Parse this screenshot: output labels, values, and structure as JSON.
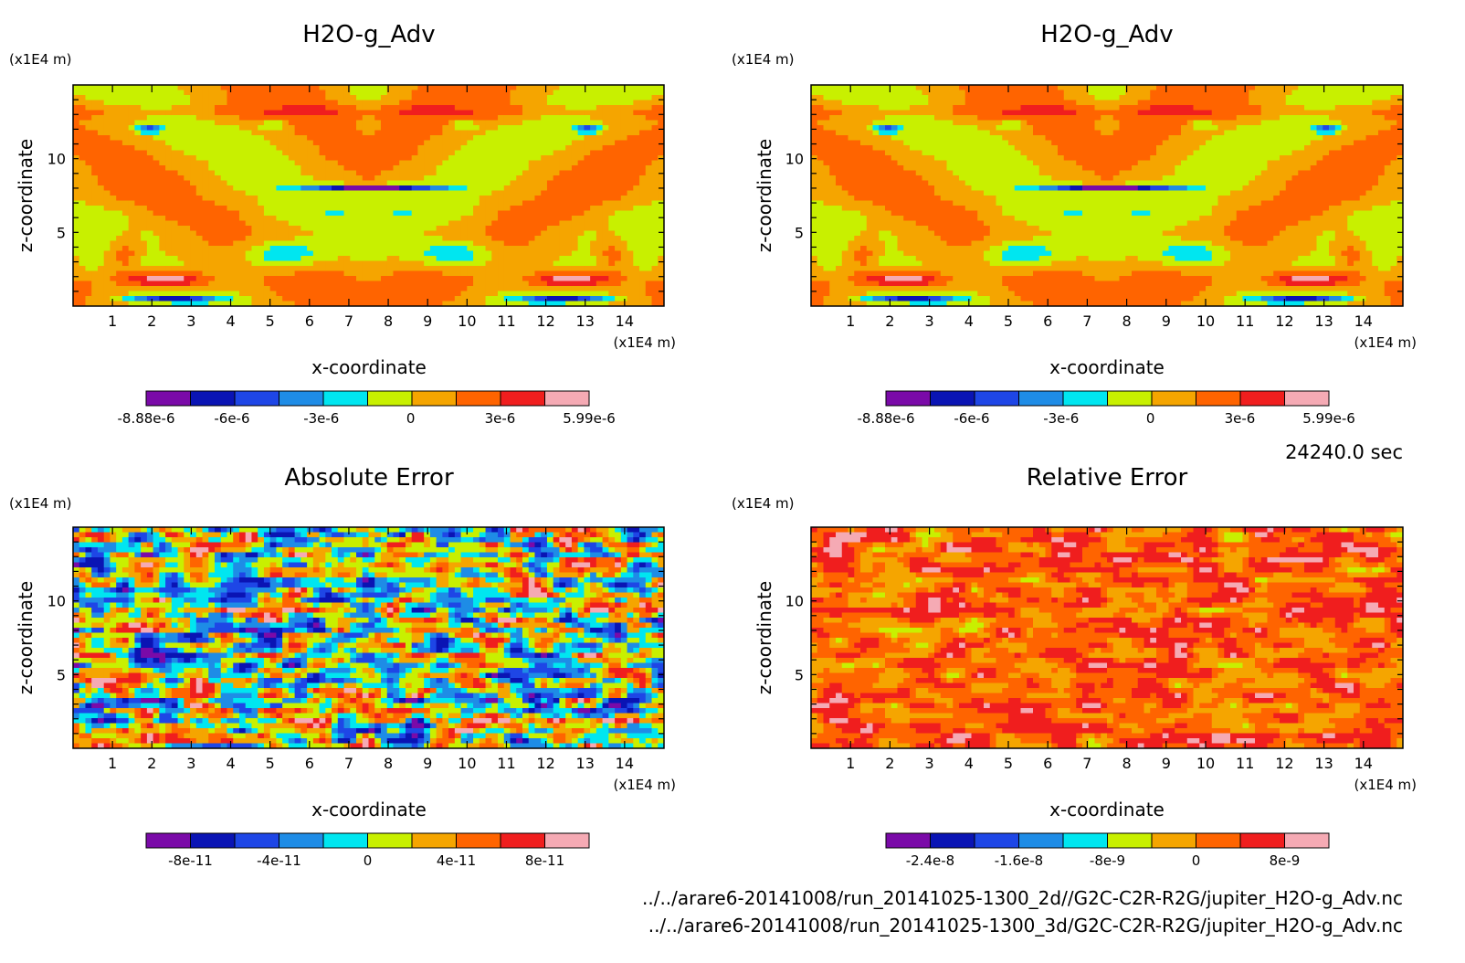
{
  "chart_data": [
    {
      "type": "heatmap",
      "title": "H2O-g_Adv",
      "xlabel": "x-coordinate",
      "ylabel": "z-coordinate",
      "x_unit": "(x1E4 m)",
      "y_unit": "(x1E4 m)",
      "xlim": [
        0,
        15
      ],
      "ylim": [
        0,
        15
      ],
      "x_ticks": [
        "1",
        "2",
        "3",
        "4",
        "5",
        "6",
        "7",
        "8",
        "9",
        "10",
        "11",
        "12",
        "13",
        "14"
      ],
      "y_ticks": [
        "5",
        "10"
      ],
      "colorbar": {
        "colors": [
          "#7a0aa8",
          "#0a14b4",
          "#1e46e6",
          "#1e8ce6",
          "#00e6f0",
          "#c8f000",
          "#f5a500",
          "#ff6400",
          "#f01e1e",
          "#f5aab4"
        ],
        "labels": [
          "-8.88e-6",
          "-6e-6",
          "-3e-6",
          "0",
          "3e-6",
          "5.99e-6"
        ],
        "min": -8.88e-06,
        "max": 5.99e-06
      },
      "field": "h2o"
    },
    {
      "type": "heatmap",
      "title": "H2O-g_Adv",
      "xlabel": "x-coordinate",
      "ylabel": "z-coordinate",
      "x_unit": "(x1E4 m)",
      "y_unit": "(x1E4 m)",
      "xlim": [
        0,
        15
      ],
      "ylim": [
        0,
        15
      ],
      "x_ticks": [
        "1",
        "2",
        "3",
        "4",
        "5",
        "6",
        "7",
        "8",
        "9",
        "10",
        "11",
        "12",
        "13",
        "14"
      ],
      "y_ticks": [
        "5",
        "10"
      ],
      "colorbar": {
        "colors": [
          "#7a0aa8",
          "#0a14b4",
          "#1e46e6",
          "#1e8ce6",
          "#00e6f0",
          "#c8f000",
          "#f5a500",
          "#ff6400",
          "#f01e1e",
          "#f5aab4"
        ],
        "labels": [
          "-8.88e-6",
          "-6e-6",
          "-3e-6",
          "0",
          "3e-6",
          "5.99e-6"
        ],
        "min": -8.88e-06,
        "max": 5.99e-06
      },
      "field": "h2o"
    },
    {
      "type": "heatmap",
      "title": "Absolute Error",
      "xlabel": "x-coordinate",
      "ylabel": "z-coordinate",
      "x_unit": "(x1E4 m)",
      "y_unit": "(x1E4 m)",
      "xlim": [
        0,
        15
      ],
      "ylim": [
        0,
        15
      ],
      "x_ticks": [
        "1",
        "2",
        "3",
        "4",
        "5",
        "6",
        "7",
        "8",
        "9",
        "10",
        "11",
        "12",
        "13",
        "14"
      ],
      "y_ticks": [
        "5",
        "10"
      ],
      "colorbar": {
        "colors": [
          "#7a0aa8",
          "#0a14b4",
          "#1e46e6",
          "#1e8ce6",
          "#00e6f0",
          "#c8f000",
          "#f5a500",
          "#ff6400",
          "#f01e1e",
          "#f5aab4"
        ],
        "labels": [
          "-8e-11",
          "-4e-11",
          "0",
          "4e-11",
          "8e-11"
        ],
        "min": -1e-10,
        "max": 1e-10
      },
      "field": "abs"
    },
    {
      "type": "heatmap",
      "title": "Relative Error",
      "xlabel": "x-coordinate",
      "ylabel": "z-coordinate",
      "x_unit": "(x1E4 m)",
      "y_unit": "(x1E4 m)",
      "xlim": [
        0,
        15
      ],
      "ylim": [
        0,
        15
      ],
      "x_ticks": [
        "1",
        "2",
        "3",
        "4",
        "5",
        "6",
        "7",
        "8",
        "9",
        "10",
        "11",
        "12",
        "13",
        "14"
      ],
      "y_ticks": [
        "5",
        "10"
      ],
      "colorbar": {
        "colors": [
          "#7a0aa8",
          "#0a14b4",
          "#1e46e6",
          "#1e8ce6",
          "#00e6f0",
          "#c8f000",
          "#f5a500",
          "#ff6400",
          "#f01e1e",
          "#f5aab4"
        ],
        "labels": [
          "-2.4e-8",
          "-1.6e-8",
          "-8e-9",
          "0",
          "8e-9"
        ],
        "min": -2.8e-08,
        "max": 1.2e-08
      },
      "field": "rel"
    }
  ],
  "time_label": "24240.0 sec",
  "footer": {
    "line1": "../../arare6-20141008/run_20141025-1300_2d//G2C-C2R-R2G/jupiter_H2O-g_Adv.nc",
    "line2": "../../arare6-20141008/run_20141025-1300_3d/G2C-C2R-R2G/jupiter_H2O-g_Adv.nc"
  }
}
